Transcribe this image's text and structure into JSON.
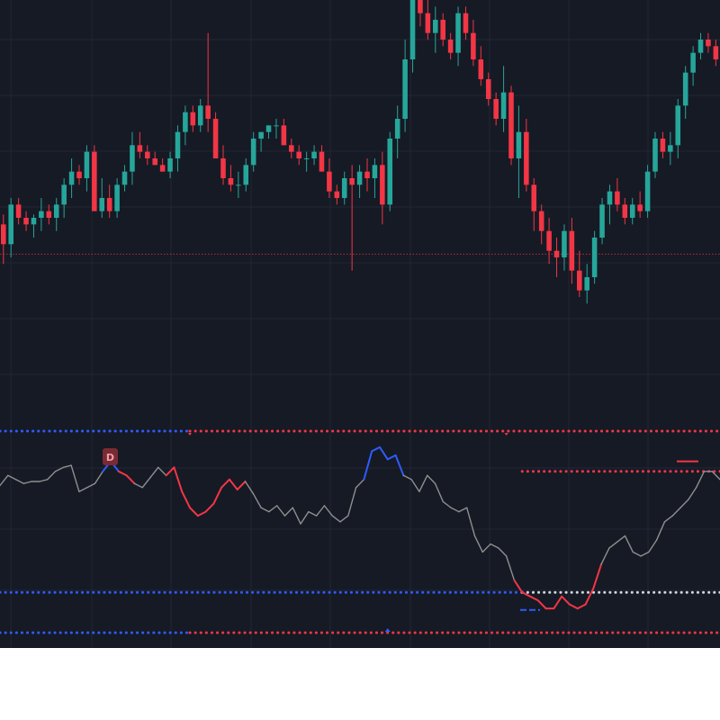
{
  "colors": {
    "background": "#161a25",
    "grid": "#232735",
    "up": "#26a69a",
    "down": "#f23645",
    "osc_neutral": "#8f8f8f",
    "osc_bear": "#f23645",
    "osc_bull": "#2e5cff",
    "level_blue": "#2e5cff",
    "level_red": "#f23645",
    "level_white": "#d1d4dc",
    "price_line": "#b23040",
    "badge_bg": "#7a2a33",
    "badge_text": "#f0a0a8"
  },
  "badge": {
    "label": "D"
  },
  "chart_data": [
    {
      "type": "candlestick",
      "title": "",
      "xlabel": "",
      "ylabel": "",
      "grid": true,
      "ylim": [
        40,
        100
      ],
      "reference_line": 61.5,
      "candles": [
        [
          66,
          67.5,
          60,
          63
        ],
        [
          63,
          70,
          61,
          69
        ],
        [
          69,
          70,
          66,
          67
        ],
        [
          67,
          68,
          65,
          66
        ],
        [
          66,
          67.5,
          64,
          67
        ],
        [
          67,
          70,
          65,
          68
        ],
        [
          68,
          69,
          66,
          67
        ],
        [
          67,
          70,
          65,
          69
        ],
        [
          69,
          73,
          67,
          72
        ],
        [
          72,
          76,
          70,
          74
        ],
        [
          74,
          75,
          72,
          73
        ],
        [
          73,
          78,
          71,
          77
        ],
        [
          77,
          78,
          68,
          68
        ],
        [
          68,
          73,
          67,
          70
        ],
        [
          70,
          72,
          67,
          68
        ],
        [
          68,
          73,
          67,
          72
        ],
        [
          72,
          75,
          71,
          74
        ],
        [
          74,
          80,
          72,
          78
        ],
        [
          78,
          80,
          76,
          77
        ],
        [
          77,
          78,
          75,
          76
        ],
        [
          76,
          77,
          75,
          75
        ],
        [
          75,
          76,
          74,
          74
        ],
        [
          74,
          77,
          73,
          76
        ],
        [
          76,
          81,
          74,
          80
        ],
        [
          80,
          84,
          78,
          83
        ],
        [
          83,
          84,
          80,
          81
        ],
        [
          81,
          85,
          80,
          84
        ],
        [
          84,
          95,
          80,
          82
        ],
        [
          82,
          83,
          76,
          76
        ],
        [
          76,
          78,
          72,
          73
        ],
        [
          73,
          75,
          71,
          72
        ],
        [
          72,
          74,
          70,
          72
        ],
        [
          72,
          76,
          71,
          75
        ],
        [
          75,
          80,
          74,
          79
        ],
        [
          79,
          80,
          77,
          80
        ],
        [
          80,
          81,
          79,
          81
        ],
        [
          81,
          82,
          79,
          81
        ],
        [
          81,
          82,
          78,
          78
        ],
        [
          78,
          79,
          76,
          77
        ],
        [
          77,
          78,
          75,
          76
        ],
        [
          76,
          77,
          74,
          76
        ],
        [
          76,
          78,
          75,
          77
        ],
        [
          77,
          78,
          74,
          74
        ],
        [
          74,
          76,
          70,
          71
        ],
        [
          71,
          72,
          69,
          70
        ],
        [
          70,
          74,
          69,
          73
        ],
        [
          73,
          75,
          59,
          72
        ],
        [
          72,
          75,
          70,
          74
        ],
        [
          74,
          76,
          71,
          73
        ],
        [
          73,
          76,
          70,
          75
        ],
        [
          75,
          77,
          66,
          69
        ],
        [
          69,
          80,
          68,
          79
        ],
        [
          79,
          84,
          76,
          82
        ],
        [
          82,
          94,
          80,
          91
        ],
        [
          91,
          103,
          89,
          101
        ],
        [
          101,
          105,
          96,
          98
        ],
        [
          98,
          100,
          94,
          95
        ],
        [
          95,
          99,
          92,
          97
        ],
        [
          97,
          98,
          93,
          94
        ],
        [
          94,
          95,
          91,
          92
        ],
        [
          92,
          99,
          90,
          98
        ],
        [
          98,
          99,
          94,
          95
        ],
        [
          95,
          97,
          90,
          91
        ],
        [
          91,
          93,
          87,
          88
        ],
        [
          88,
          89,
          84,
          85
        ],
        [
          85,
          86,
          81,
          82
        ],
        [
          82,
          90,
          80,
          86
        ],
        [
          86,
          87,
          75,
          76
        ],
        [
          76,
          84,
          70,
          80
        ],
        [
          80,
          82,
          71,
          72
        ],
        [
          72,
          73,
          65,
          68
        ],
        [
          68,
          69,
          63,
          65
        ],
        [
          65,
          67,
          60,
          62
        ],
        [
          62,
          64,
          58,
          61
        ],
        [
          61,
          66,
          59,
          65
        ],
        [
          65,
          67,
          57,
          59
        ],
        [
          59,
          62,
          55,
          56
        ],
        [
          56,
          60,
          54,
          58
        ],
        [
          58,
          65,
          57,
          64
        ],
        [
          64,
          70,
          63,
          69
        ],
        [
          69,
          72,
          66,
          71
        ],
        [
          71,
          73,
          68,
          69
        ],
        [
          69,
          70,
          66,
          67
        ],
        [
          67,
          70,
          66,
          69
        ],
        [
          69,
          71,
          67,
          68
        ],
        [
          68,
          75,
          67,
          74
        ],
        [
          74,
          80,
          73,
          79
        ],
        [
          79,
          80,
          76,
          77
        ],
        [
          77,
          80,
          75,
          78
        ],
        [
          78,
          85,
          76,
          84
        ],
        [
          84,
          90,
          82,
          89
        ],
        [
          89,
          93,
          87,
          92
        ],
        [
          92,
          95,
          91,
          94
        ],
        [
          94,
          95,
          92,
          93
        ],
        [
          93,
          94,
          90,
          91
        ]
      ]
    },
    {
      "type": "line",
      "title": "",
      "xlabel": "",
      "ylabel": "",
      "grid": true,
      "ylim": [
        0,
        100
      ],
      "levels": [
        {
          "value": 100,
          "split_at_index": 24,
          "left_color": "level_blue",
          "right_color": "level_red"
        },
        {
          "value": 80,
          "start_index": 66,
          "color": "level_red"
        },
        {
          "value": 20,
          "split_at_index": 66,
          "left_color": "level_blue",
          "right_color": "level_white"
        },
        {
          "value": 0,
          "split_at_index": 24,
          "left_color": "level_blue",
          "right_color": "level_red"
        }
      ],
      "values": [
        73,
        78,
        76,
        74,
        75,
        75,
        76,
        80,
        82,
        83,
        70,
        72,
        74,
        80,
        85,
        80,
        78,
        74,
        72,
        77,
        82,
        78,
        82,
        70,
        62,
        58,
        60,
        64,
        72,
        76,
        71,
        75,
        69,
        62,
        60,
        63,
        58,
        62,
        54,
        60,
        58,
        63,
        58,
        55,
        58,
        72,
        76,
        90,
        92,
        86,
        88,
        78,
        76,
        70,
        78,
        74,
        65,
        62,
        60,
        62,
        48,
        40,
        44,
        42,
        38,
        26,
        20,
        18,
        16,
        12,
        12,
        18,
        14,
        12,
        14,
        22,
        34,
        42,
        45,
        48,
        40,
        38,
        40,
        46,
        55,
        58,
        62,
        66,
        72,
        80,
        80,
        76
      ]
    }
  ]
}
